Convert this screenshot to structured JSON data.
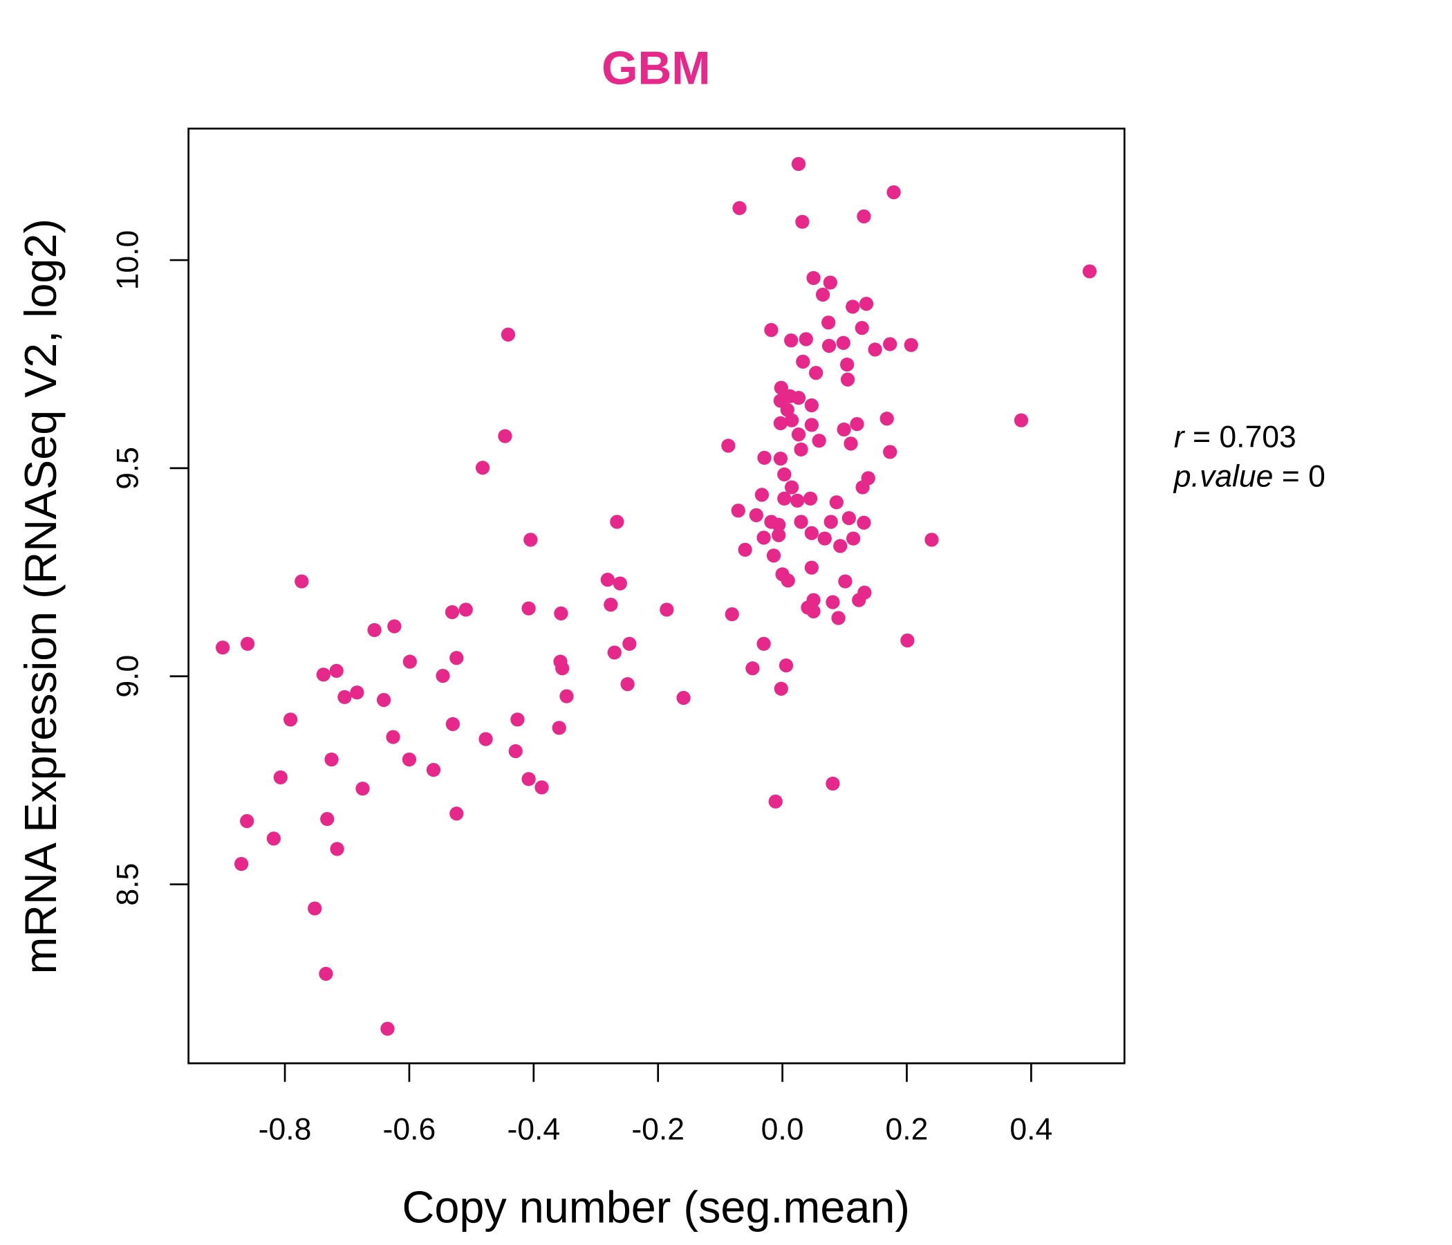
{
  "chart_data": {
    "type": "scatter",
    "title": "GBM",
    "xlabel": "Copy number (seg.mean)",
    "ylabel": "mRNA Expression (RNASeq V2, log2)",
    "xlim": [
      -0.955,
      0.55
    ],
    "ylim": [
      8.07,
      10.316
    ],
    "xticks": [
      -0.8,
      -0.6,
      -0.4,
      -0.2,
      0.0,
      0.2,
      0.4
    ],
    "xtick_labels": [
      "-0.8",
      "-0.6",
      "-0.4",
      "-0.2",
      "0.0",
      "0.2",
      "0.4"
    ],
    "yticks": [
      8.5,
      9.0,
      9.5,
      10.0
    ],
    "ytick_labels": [
      "8.5",
      "9.0",
      "9.5",
      "10.0"
    ],
    "grid": false,
    "color": "#E6288A",
    "annotation": {
      "r_label": "r",
      "r_value": "= 0.703",
      "p_label": "p.value",
      "p_value": "= 0"
    },
    "points": [
      [
        -0.9,
        9.069
      ],
      [
        -0.86,
        9.078
      ],
      [
        -0.773,
        9.228
      ],
      [
        -0.791,
        8.896
      ],
      [
        -0.738,
        9.004
      ],
      [
        -0.717,
        9.013
      ],
      [
        -0.704,
        8.95
      ],
      [
        -0.684,
        8.961
      ],
      [
        -0.807,
        8.757
      ],
      [
        -0.725,
        8.8
      ],
      [
        -0.675,
        8.73
      ],
      [
        -0.656,
        9.111
      ],
      [
        -0.624,
        9.12
      ],
      [
        -0.599,
        9.035
      ],
      [
        -0.641,
        8.943
      ],
      [
        -0.626,
        8.854
      ],
      [
        -0.6,
        8.8
      ],
      [
        -0.561,
        8.775
      ],
      [
        -0.546,
        9.001
      ],
      [
        -0.531,
        9.154
      ],
      [
        -0.524,
        9.044
      ],
      [
        -0.509,
        9.16
      ],
      [
        -0.53,
        8.885
      ],
      [
        -0.477,
        8.849
      ],
      [
        -0.524,
        8.67
      ],
      [
        -0.861,
        8.652
      ],
      [
        -0.87,
        8.549
      ],
      [
        -0.818,
        8.61
      ],
      [
        -0.732,
        8.657
      ],
      [
        -0.716,
        8.585
      ],
      [
        -0.752,
        8.442
      ],
      [
        -0.734,
        8.285
      ],
      [
        -0.635,
        8.153
      ],
      [
        -0.482,
        9.501
      ],
      [
        -0.446,
        9.577
      ],
      [
        -0.441,
        9.821
      ],
      [
        -0.405,
        9.328
      ],
      [
        -0.408,
        9.163
      ],
      [
        -0.426,
        8.896
      ],
      [
        -0.429,
        8.82
      ],
      [
        -0.408,
        8.753
      ],
      [
        -0.387,
        8.733
      ],
      [
        -0.356,
        9.151
      ],
      [
        -0.357,
        9.035
      ],
      [
        -0.354,
        9.019
      ],
      [
        -0.347,
        8.952
      ],
      [
        -0.359,
        8.876
      ],
      [
        -0.281,
        9.232
      ],
      [
        -0.266,
        9.371
      ],
      [
        -0.261,
        9.223
      ],
      [
        -0.276,
        9.172
      ],
      [
        -0.27,
        9.057
      ],
      [
        -0.246,
        9.078
      ],
      [
        -0.249,
        8.981
      ],
      [
        -0.186,
        9.16
      ],
      [
        -0.159,
        8.948
      ],
      [
        -0.087,
        9.554
      ],
      [
        -0.081,
        9.149
      ],
      [
        -0.069,
        10.125
      ],
      [
        -0.071,
        9.398
      ],
      [
        -0.06,
        9.304
      ],
      [
        -0.048,
        9.019
      ],
      [
        -0.03,
        9.078
      ],
      [
        -0.011,
        8.699
      ],
      [
        -0.002,
        8.97
      ],
      [
        0.006,
        9.026
      ],
      [
        -0.002,
        9.693
      ],
      [
        -0.018,
        9.832
      ],
      [
        0.014,
        9.807
      ],
      [
        0.038,
        9.81
      ],
      [
        0.012,
        9.673
      ],
      [
        -0.003,
        9.662
      ],
      [
        0.008,
        9.64
      ],
      [
        0.026,
        9.669
      ],
      [
        0.047,
        9.651
      ],
      [
        0.015,
        9.615
      ],
      [
        -0.003,
        9.608
      ],
      [
        0.026,
        9.581
      ],
      [
        0.047,
        9.604
      ],
      [
        0.059,
        9.566
      ],
      [
        0.03,
        9.545
      ],
      [
        -0.003,
        9.523
      ],
      [
        -0.029,
        9.525
      ],
      [
        0.003,
        9.485
      ],
      [
        0.015,
        9.454
      ],
      [
        0.003,
        9.427
      ],
      [
        0.024,
        9.422
      ],
      [
        0.045,
        9.427
      ],
      [
        -0.033,
        9.436
      ],
      [
        -0.042,
        9.387
      ],
      [
        -0.018,
        9.371
      ],
      [
        -0.006,
        9.364
      ],
      [
        0.03,
        9.371
      ],
      [
        0.047,
        9.344
      ],
      [
        -0.006,
        9.339
      ],
      [
        -0.03,
        9.333
      ],
      [
        -0.014,
        9.29
      ],
      [
        0.0,
        9.245
      ],
      [
        0.009,
        9.23
      ],
      [
        0.047,
        9.261
      ],
      [
        0.041,
        9.165
      ],
      [
        0.05,
        9.183
      ],
      [
        0.05,
        9.156
      ],
      [
        0.068,
        9.331
      ],
      [
        0.078,
        9.371
      ],
      [
        0.087,
        9.418
      ],
      [
        0.093,
        9.313
      ],
      [
        0.101,
        9.228
      ],
      [
        0.107,
        9.38
      ],
      [
        0.114,
        9.331
      ],
      [
        0.123,
        9.183
      ],
      [
        0.132,
        9.201
      ],
      [
        0.131,
        9.369
      ],
      [
        0.129,
        9.454
      ],
      [
        0.138,
        9.476
      ],
      [
        0.11,
        9.559
      ],
      [
        0.099,
        9.593
      ],
      [
        0.12,
        9.606
      ],
      [
        0.168,
        9.619
      ],
      [
        0.173,
        9.539
      ],
      [
        0.081,
        9.178
      ],
      [
        0.09,
        9.14
      ],
      [
        0.081,
        8.742
      ],
      [
        0.201,
        9.086
      ],
      [
        0.24,
        9.328
      ],
      [
        0.384,
        9.615
      ],
      [
        0.494,
        9.973
      ],
      [
        0.026,
        10.231
      ],
      [
        0.179,
        10.163
      ],
      [
        0.032,
        10.092
      ],
      [
        0.131,
        10.105
      ],
      [
        0.05,
        9.957
      ],
      [
        0.077,
        9.946
      ],
      [
        0.065,
        9.917
      ],
      [
        0.074,
        9.85
      ],
      [
        0.113,
        9.888
      ],
      [
        0.135,
        9.895
      ],
      [
        0.128,
        9.837
      ],
      [
        0.075,
        9.794
      ],
      [
        0.098,
        9.801
      ],
      [
        0.149,
        9.785
      ],
      [
        0.173,
        9.798
      ],
      [
        0.207,
        9.796
      ],
      [
        0.033,
        9.756
      ],
      [
        0.054,
        9.729
      ],
      [
        0.104,
        9.749
      ],
      [
        0.105,
        9.713
      ]
    ]
  }
}
